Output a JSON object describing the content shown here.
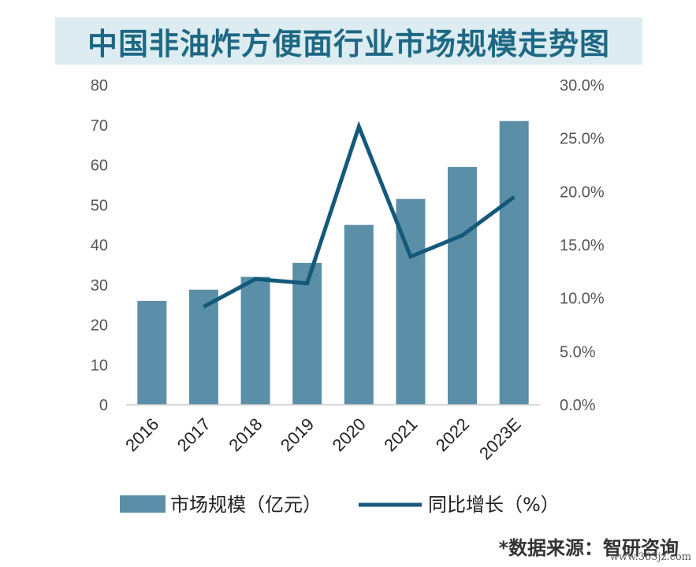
{
  "chart_data": {
    "type": "bar",
    "title": "中国非油炸方便面行业市场规模走势图",
    "categories": [
      "2016",
      "2017",
      "2018",
      "2019",
      "2020",
      "2021",
      "2022",
      "2023E"
    ],
    "series": [
      {
        "name": "市场规模（亿元）",
        "type": "bar",
        "axis": "left",
        "values": [
          26,
          28.8,
          32,
          35.5,
          45,
          51.5,
          59.5,
          71
        ],
        "color": "#5b8fa8"
      },
      {
        "name": "同比增长（%）",
        "type": "line",
        "axis": "right",
        "values": [
          null,
          9.2,
          11.8,
          11.4,
          26.1,
          13.9,
          15.9,
          19.5
        ],
        "color": "#15597a"
      }
    ],
    "y_left": {
      "range": [
        0,
        80
      ],
      "ticks": [
        "0",
        "10",
        "20",
        "30",
        "40",
        "50",
        "60",
        "70",
        "80"
      ]
    },
    "y_right": {
      "range": [
        0,
        30
      ],
      "ticks": [
        "0.0%",
        "5.0%",
        "10.0%",
        "15.0%",
        "20.0%",
        "25.0%",
        "30.0%"
      ]
    },
    "grid": false,
    "legend": {
      "position": "bottom",
      "bar_label": "市场规模（亿元）",
      "line_label": "同比增长（%）"
    }
  },
  "source": "*数据来源：智研咨询",
  "watermark": "www.365jz.com",
  "colors": {
    "title_band": "#dcecf1",
    "title_text": "#1e6884"
  }
}
